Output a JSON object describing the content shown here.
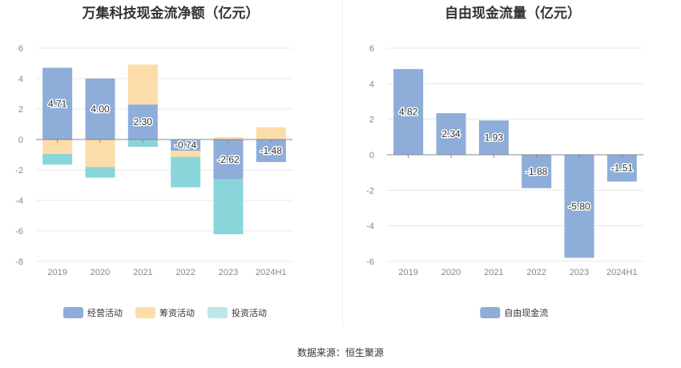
{
  "colors": {
    "operating": "#8eadd9",
    "financing": "#fcdca8",
    "investing": "#8ad5da",
    "legend_investing": "#bce6e9",
    "grid": "#e8e8e8",
    "axis": "#888888"
  },
  "source_text": "数据来源：恒生聚源",
  "chart_data": [
    {
      "type": "bar",
      "stacked": true,
      "title": "万集科技现金流净额（亿元）",
      "categories": [
        "2019",
        "2020",
        "2021",
        "2022",
        "2023",
        "2024H1"
      ],
      "ylim": [
        -8,
        6
      ],
      "yticks": [
        6,
        4,
        2,
        0,
        -2,
        -4,
        -6,
        -8
      ],
      "grid": true,
      "legend_position": "bottom",
      "series": [
        {
          "name": "经营活动",
          "values": [
            4.71,
            4.0,
            2.3,
            -0.74,
            -2.62,
            -1.48
          ]
        },
        {
          "name": "筹资活动",
          "values": [
            -0.95,
            -1.8,
            2.62,
            -0.4,
            0.15,
            0.8
          ]
        },
        {
          "name": "投资活动",
          "values": [
            -0.7,
            -0.7,
            -0.48,
            -2.0,
            -3.6,
            0.0
          ]
        }
      ],
      "data_labels": [
        "4.71",
        "4.00",
        "2.30",
        "-0.74",
        "-2.62",
        "-1.48"
      ]
    },
    {
      "type": "bar",
      "title": "自由现金流量（亿元）",
      "categories": [
        "2019",
        "2020",
        "2021",
        "2022",
        "2023",
        "2024H1"
      ],
      "ylim": [
        -6,
        6
      ],
      "yticks": [
        6,
        4,
        2,
        0,
        -2,
        -4,
        -6
      ],
      "grid": true,
      "legend_position": "bottom",
      "series": [
        {
          "name": "自由现金流",
          "values": [
            4.82,
            2.34,
            1.93,
            -1.88,
            -5.8,
            -1.51
          ]
        }
      ],
      "data_labels": [
        "4.82",
        "2.34",
        "1.93",
        "-1.88",
        "-5.80",
        "-1.51"
      ]
    }
  ]
}
